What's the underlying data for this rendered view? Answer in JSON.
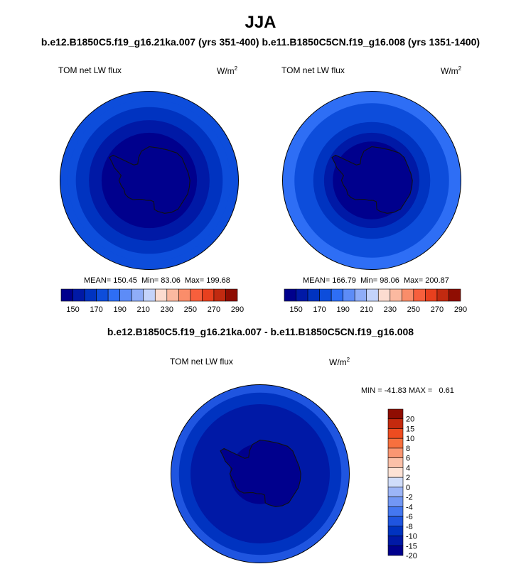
{
  "header": {
    "title": "JJA",
    "pair_title": "b.e12.B1850C5.f19_g16.21ka.007 (yrs 351-400) b.e11.B1850C5CN.f19_g16.008 (yrs 1351-1400)",
    "diff_title": "b.e12.B1850C5.f19_g16.21ka.007 - b.e11.B1850C5CN.f19_g16.008"
  },
  "colors": {
    "levels_palette": [
      "#00008d",
      "#0019a6",
      "#0033c0",
      "#0d4ddb",
      "#2e6ef5",
      "#5d8cf7",
      "#8fadf8",
      "#c4d3fa",
      "#fcdcd0",
      "#fbb9a0",
      "#fa8d6a",
      "#f75f3c",
      "#e8401e",
      "#c12a10",
      "#8f0d02"
    ],
    "diff_palette": [
      "#00008d",
      "#0019a6",
      "#0033c0",
      "#1f55e0",
      "#4477f0",
      "#7297f4",
      "#9cb5f7",
      "#d0ddfa",
      "#fde2d5",
      "#fbc0a8",
      "#fa9672",
      "#f7703e",
      "#ee4c20",
      "#c42a0e",
      "#8f0d02"
    ],
    "coast": "#111111",
    "outline": "#000000"
  },
  "chart_data": [
    {
      "type": "heatmap",
      "projection": "south-polar-stereographic",
      "title": "TOM net LW flux",
      "units": "W/m2",
      "units_base": "W/m",
      "units_exp": "2",
      "stats": {
        "mean": "150.45",
        "min": "83.06",
        "max": "199.68"
      },
      "stats_labels": {
        "mean": "MEAN=",
        "min": "Min=",
        "max": "Max="
      },
      "colorbar": {
        "orientation": "horizontal",
        "tick_labels": [
          "150",
          "170",
          "190",
          "210",
          "230",
          "250",
          "270",
          "290"
        ]
      },
      "field": {
        "rings": [
          {
            "lat_limit": -40,
            "level": 3
          },
          {
            "lat_limit": -44,
            "level": 3
          },
          {
            "lat_limit": -48,
            "level": 2
          },
          {
            "lat_limit": -55,
            "level": 1
          },
          {
            "lat_limit": -62,
            "level": 0
          }
        ]
      }
    },
    {
      "type": "heatmap",
      "projection": "south-polar-stereographic",
      "title": "TOM net LW flux",
      "units": "W/m2",
      "units_base": "W/m",
      "units_exp": "2",
      "stats": {
        "mean": "166.79",
        "min": "98.06",
        "max": "200.87"
      },
      "stats_labels": {
        "mean": "MEAN=",
        "min": "Min=",
        "max": "Max="
      },
      "colorbar": {
        "orientation": "horizontal",
        "tick_labels": [
          "150",
          "170",
          "190",
          "210",
          "230",
          "250",
          "270",
          "290"
        ]
      },
      "field": {
        "rings": [
          {
            "lat_limit": -40,
            "level": 4
          },
          {
            "lat_limit": -46,
            "level": 3
          },
          {
            "lat_limit": -56,
            "level": 2
          },
          {
            "lat_limit": -62,
            "level": 1
          },
          {
            "lat_limit": -67,
            "level": 0
          }
        ]
      }
    },
    {
      "type": "heatmap",
      "projection": "south-polar-stereographic",
      "title": "TOM net LW flux",
      "units": "W/m2",
      "units_base": "W/m",
      "units_exp": "2",
      "stats": {
        "min": "-41.83",
        "max": "0.61"
      },
      "stats_labels": {
        "min": "MIN =",
        "max": "MAX ="
      },
      "colorbar": {
        "orientation": "vertical",
        "tick_labels": [
          "20",
          "15",
          "10",
          "8",
          "6",
          "4",
          "2",
          "0",
          "-2",
          "-4",
          "-6",
          "-8",
          "-10",
          "-15",
          "-20"
        ]
      },
      "field": {
        "rings": [
          {
            "lat_limit": -40,
            "level": 3
          },
          {
            "lat_limit": -44,
            "level": 2
          },
          {
            "lat_limit": -50,
            "level": 1
          },
          {
            "lat_limit": -72,
            "level": 0
          }
        ]
      }
    }
  ]
}
